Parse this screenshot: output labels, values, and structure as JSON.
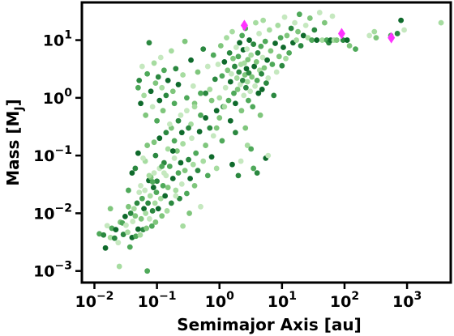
{
  "chart_data": {
    "type": "scatter",
    "title": "",
    "xlabel": "Semimajor Axis [au]",
    "ylabel_main": "Mass [M",
    "ylabel_sub": "J",
    "ylabel_close": "]",
    "x_scale": "log",
    "y_scale": "log",
    "xlim": [
      0.0063,
      5000
    ],
    "ylim": [
      0.00063,
      45
    ],
    "grid": false,
    "legend": "none",
    "x_ticks": [
      {
        "value": 0.01,
        "base": "10",
        "exp": "−2"
      },
      {
        "value": 0.1,
        "base": "10",
        "exp": "−1"
      },
      {
        "value": 1,
        "base": "10",
        "exp": "0"
      },
      {
        "value": 10,
        "base": "10",
        "exp": "1"
      },
      {
        "value": 100,
        "base": "10",
        "exp": "2"
      },
      {
        "value": 1000,
        "base": "10",
        "exp": "3"
      }
    ],
    "y_ticks": [
      {
        "value": 0.001,
        "base": "10",
        "exp": "−3"
      },
      {
        "value": 0.01,
        "base": "10",
        "exp": "−2"
      },
      {
        "value": 0.1,
        "base": "10",
        "exp": "−1"
      },
      {
        "value": 1,
        "base": "10",
        "exp": "0"
      },
      {
        "value": 10,
        "base": "10",
        "exp": "1"
      }
    ],
    "colors": {
      "planets": [
        "#c5e8bf",
        "#a6dca0",
        "#7fc67c",
        "#4fa95a",
        "#2b8840",
        "#0f6a2c"
      ],
      "highlight": "#ff33ff",
      "axes": "#000000"
    },
    "series": [
      {
        "marker": "circle",
        "points": [
          [
            0.012,
            0.0044
          ],
          [
            0.014,
            0.0042
          ],
          [
            0.015,
            0.0025
          ],
          [
            0.016,
            0.0061
          ],
          [
            0.018,
            0.0038
          ],
          [
            0.018,
            0.012
          ],
          [
            0.019,
            0.0055
          ],
          [
            0.021,
            0.0037
          ],
          [
            0.022,
            0.0052
          ],
          [
            0.024,
            0.0031
          ],
          [
            0.025,
            0.0012
          ],
          [
            0.026,
            0.007
          ],
          [
            0.028,
            0.0068
          ],
          [
            0.029,
            0.0043
          ],
          [
            0.031,
            0.0088
          ],
          [
            0.032,
            0.0062
          ],
          [
            0.034,
            0.0047
          ],
          [
            0.035,
            0.013
          ],
          [
            0.037,
            0.0026
          ],
          [
            0.038,
            0.01
          ],
          [
            0.04,
            0.0038
          ],
          [
            0.041,
            0.0072
          ],
          [
            0.043,
            0.012
          ],
          [
            0.045,
            0.009
          ],
          [
            0.046,
            0.004
          ],
          [
            0.048,
            0.015
          ],
          [
            0.05,
            0.0053
          ],
          [
            0.052,
            0.023
          ],
          [
            0.054,
            0.0042
          ],
          [
            0.056,
            0.008
          ],
          [
            0.058,
            0.018
          ],
          [
            0.06,
            0.0052
          ],
          [
            0.062,
            0.012
          ],
          [
            0.064,
            0.025
          ],
          [
            0.066,
            0.01
          ],
          [
            0.068,
            0.0055
          ],
          [
            0.07,
            0.001
          ],
          [
            0.072,
            0.015
          ],
          [
            0.074,
            0.037
          ],
          [
            0.076,
            0.008
          ],
          [
            0.078,
            0.02
          ],
          [
            0.08,
            0.042
          ],
          [
            0.083,
            0.006
          ],
          [
            0.085,
            0.011
          ],
          [
            0.088,
            0.028
          ],
          [
            0.09,
            0.05
          ],
          [
            0.093,
            0.015
          ],
          [
            0.095,
            0.007
          ],
          [
            0.098,
            0.023
          ],
          [
            0.1,
            0.036
          ],
          [
            0.105,
            0.012
          ],
          [
            0.11,
            0.06
          ],
          [
            0.115,
            0.018
          ],
          [
            0.12,
            0.009
          ],
          [
            0.125,
            0.03
          ],
          [
            0.13,
            0.075
          ],
          [
            0.135,
            0.02
          ],
          [
            0.14,
            0.045
          ],
          [
            0.145,
            0.011
          ],
          [
            0.15,
            0.028
          ],
          [
            0.16,
            0.065
          ],
          [
            0.17,
            0.015
          ],
          [
            0.18,
            0.04
          ],
          [
            0.19,
            0.09
          ],
          [
            0.2,
            0.025
          ],
          [
            0.21,
            0.12
          ],
          [
            0.22,
            0.05
          ],
          [
            0.23,
            0.018
          ],
          [
            0.24,
            0.075
          ],
          [
            0.25,
            0.032
          ],
          [
            0.26,
            0.16
          ],
          [
            0.28,
            0.055
          ],
          [
            0.3,
            0.022
          ],
          [
            0.32,
            0.085
          ],
          [
            0.34,
            0.04
          ],
          [
            0.36,
            0.2
          ],
          [
            0.38,
            0.07
          ],
          [
            0.4,
            0.03
          ],
          [
            0.42,
            0.11
          ],
          [
            0.45,
            0.055
          ],
          [
            0.48,
            0.26
          ],
          [
            0.5,
            0.013
          ],
          [
            0.55,
            0.08
          ],
          [
            0.6,
            0.15
          ],
          [
            0.65,
            0.045
          ],
          [
            0.7,
            0.3
          ],
          [
            0.75,
            0.095
          ],
          [
            0.8,
            0.22
          ],
          [
            0.9,
            0.06
          ],
          [
            1.0,
            0.45
          ],
          [
            0.035,
            0.025
          ],
          [
            0.045,
            0.06
          ],
          [
            0.05,
            0.11
          ],
          [
            0.055,
            0.03
          ],
          [
            0.065,
            0.08
          ],
          [
            0.07,
            0.15
          ],
          [
            0.085,
            0.035
          ],
          [
            0.095,
            0.1
          ],
          [
            0.11,
            0.2
          ],
          [
            0.13,
            0.05
          ],
          [
            0.15,
            0.13
          ],
          [
            0.17,
            0.3
          ],
          [
            0.19,
            0.18
          ],
          [
            0.22,
            0.4
          ],
          [
            0.25,
            0.25
          ],
          [
            0.3,
            0.6
          ],
          [
            0.35,
            0.35
          ],
          [
            0.4,
            0.8
          ],
          [
            0.5,
            0.5
          ],
          [
            0.6,
            1.2
          ],
          [
            0.04,
            0.05
          ],
          [
            0.06,
            0.09
          ],
          [
            0.075,
            0.045
          ],
          [
            0.09,
            0.17
          ],
          [
            0.12,
            0.065
          ],
          [
            0.14,
            0.25
          ],
          [
            0.18,
            0.12
          ],
          [
            0.2,
            0.02
          ],
          [
            0.26,
            0.006
          ],
          [
            0.33,
            0.01
          ],
          [
            0.05,
            1.5
          ],
          [
            0.052,
            2.0
          ],
          [
            0.055,
            0.8
          ],
          [
            0.058,
            3.5
          ],
          [
            0.062,
            1.1
          ],
          [
            0.066,
            0.5
          ],
          [
            0.07,
            2.6
          ],
          [
            0.075,
            9.0
          ],
          [
            0.08,
            1.3
          ],
          [
            0.085,
            0.7
          ],
          [
            0.09,
            4.0
          ],
          [
            0.095,
            1.8
          ],
          [
            0.1,
            0.4
          ],
          [
            0.105,
            2.3
          ],
          [
            0.11,
            0.9
          ],
          [
            0.115,
            5.0
          ],
          [
            0.12,
            1.5
          ],
          [
            0.125,
            0.6
          ],
          [
            0.13,
            3.0
          ],
          [
            0.14,
            1.1
          ],
          [
            0.15,
            2.0
          ],
          [
            0.16,
            0.35
          ],
          [
            0.17,
            6.5
          ],
          [
            0.18,
            1.3
          ],
          [
            0.19,
            0.8
          ],
          [
            0.2,
            3.2
          ],
          [
            0.22,
            1.7
          ],
          [
            0.24,
            0.5
          ],
          [
            0.26,
            2.5
          ],
          [
            0.28,
            9.5
          ],
          [
            0.3,
            1.0
          ],
          [
            0.32,
            0.3
          ],
          [
            0.35,
            4.5
          ],
          [
            0.38,
            1.6
          ],
          [
            0.4,
            0.7
          ],
          [
            0.45,
            2.8
          ],
          [
            0.5,
            1.2
          ],
          [
            0.55,
            7.0
          ],
          [
            0.6,
            0.45
          ],
          [
            0.65,
            3.5
          ],
          [
            0.7,
            1.4
          ],
          [
            0.75,
            0.9
          ],
          [
            0.8,
            5.5
          ],
          [
            0.85,
            2.1
          ],
          [
            0.9,
            0.6
          ],
          [
            0.95,
            3.8
          ],
          [
            1.0,
            1.0
          ],
          [
            1.05,
            8.0
          ],
          [
            1.1,
            2.4
          ],
          [
            1.15,
            0.7
          ],
          [
            1.2,
            4.2
          ],
          [
            1.25,
            1.5
          ],
          [
            1.3,
            11.0
          ],
          [
            1.35,
            3.0
          ],
          [
            1.4,
            0.9
          ],
          [
            1.45,
            6.0
          ],
          [
            1.5,
            1.9
          ],
          [
            1.55,
            2.6
          ],
          [
            1.6,
            14.0
          ],
          [
            1.65,
            4.8
          ],
          [
            1.7,
            1.2
          ],
          [
            1.75,
            3.5
          ],
          [
            1.8,
            0.8
          ],
          [
            1.85,
            7.5
          ],
          [
            1.9,
            2.2
          ],
          [
            1.95,
            1.4
          ],
          [
            2.0,
            5.2
          ],
          [
            2.05,
            2.8
          ],
          [
            2.1,
            9.0
          ],
          [
            2.15,
            1.7
          ],
          [
            2.2,
            3.8
          ],
          [
            2.25,
            0.6
          ],
          [
            2.3,
            12.0
          ],
          [
            2.35,
            2.0
          ],
          [
            2.4,
            6.8
          ],
          [
            2.45,
            1.1
          ],
          [
            2.5,
            4.0
          ],
          [
            2.55,
            2.5
          ],
          [
            2.6,
            16.0
          ],
          [
            2.65,
            1.5
          ],
          [
            2.7,
            3.2
          ],
          [
            2.75,
            7.0
          ],
          [
            2.8,
            1.9
          ],
          [
            2.85,
            4.6
          ],
          [
            2.9,
            0.9
          ],
          [
            2.95,
            2.7
          ],
          [
            3.0,
            10.0
          ],
          [
            3.1,
            1.3
          ],
          [
            3.2,
            5.5
          ],
          [
            3.3,
            2.3
          ],
          [
            3.4,
            0.7
          ],
          [
            3.5,
            8.5
          ],
          [
            3.6,
            3.5
          ],
          [
            3.7,
            1.6
          ],
          [
            3.8,
            20.0
          ],
          [
            3.9,
            4.2
          ],
          [
            4.0,
            2.0
          ],
          [
            4.1,
            6.0
          ],
          [
            4.2,
            1.2
          ],
          [
            4.3,
            13.0
          ],
          [
            4.4,
            3.0
          ],
          [
            4.5,
            0.5
          ],
          [
            4.6,
            7.8
          ],
          [
            4.7,
            2.6
          ],
          [
            4.8,
            1.4
          ],
          [
            4.9,
            5.0
          ],
          [
            5.0,
            22.0
          ],
          [
            5.2,
            3.3
          ],
          [
            5.4,
            9.5
          ],
          [
            5.6,
            1.8
          ],
          [
            5.8,
            4.5
          ],
          [
            6.0,
            2.2
          ],
          [
            6.3,
            15.0
          ],
          [
            6.6,
            6.5
          ],
          [
            7.0,
            3.8
          ],
          [
            7.4,
            1.1
          ],
          [
            7.8,
            8.8
          ],
          [
            8.2,
            2.8
          ],
          [
            8.6,
            18.0
          ],
          [
            9.0,
            5.2
          ],
          [
            9.5,
            11.0
          ],
          [
            10.0,
            3.6
          ],
          [
            10.5,
            7.5
          ],
          [
            11.0,
            25.0
          ],
          [
            11.5,
            4.8
          ],
          [
            12.0,
            12.0
          ],
          [
            13.0,
            6.0
          ],
          [
            14.0,
            16.0
          ],
          [
            15.0,
            9.0
          ],
          [
            16.0,
            20.0
          ],
          [
            17.0,
            10.0
          ],
          [
            18.0,
            14.0
          ],
          [
            19.0,
            28.0
          ],
          [
            20.0,
            8.0
          ],
          [
            22.0,
            12.0
          ],
          [
            24.0,
            18.0
          ],
          [
            26.0,
            11.0
          ],
          [
            28.0,
            24.0
          ],
          [
            30.0,
            10.0
          ],
          [
            33.0,
            15.0
          ],
          [
            36.0,
            10.0
          ],
          [
            40.0,
            30.0
          ],
          [
            44.0,
            10.0
          ],
          [
            48.0,
            20.0
          ],
          [
            52.0,
            10.0
          ],
          [
            56.0,
            9.0
          ],
          [
            60.0,
            10.0
          ],
          [
            64.0,
            26.0
          ],
          [
            68.0,
            10.0
          ],
          [
            75.0,
            10.0
          ],
          [
            3.5,
            0.06
          ],
          [
            4.0,
            0.05
          ],
          [
            5.5,
            0.09
          ],
          [
            6.0,
            0.1
          ],
          [
            2.8,
            0.15
          ],
          [
            2.6,
            0.3
          ],
          [
            3.2,
            0.13
          ],
          [
            1.8,
            0.25
          ],
          [
            1.5,
            0.4
          ],
          [
            2.2,
            0.08
          ],
          [
            1.2,
            0.7
          ],
          [
            0.9,
            0.3
          ],
          [
            1.1,
            0.18
          ],
          [
            2.0,
            0.045
          ],
          [
            1.6,
            0.07
          ],
          [
            250.0,
            12.0
          ],
          [
            300.0,
            14.0
          ],
          [
            320.0,
            11.0
          ],
          [
            550.0,
            12.0
          ],
          [
            700.0,
            13.0
          ],
          [
            800.0,
            22.0
          ],
          [
            900.0,
            15.0
          ],
          [
            3500,
            20.0
          ],
          [
            120.0,
            8.0
          ],
          [
            150.0,
            7.0
          ],
          [
            95.0,
            10.0
          ],
          [
            110.0,
            10.0
          ]
        ]
      },
      {
        "marker": "diamond",
        "color": "#ff33ff",
        "points": [
          [
            2.5,
            18
          ],
          [
            90,
            13
          ],
          [
            560,
            11
          ]
        ]
      }
    ]
  }
}
